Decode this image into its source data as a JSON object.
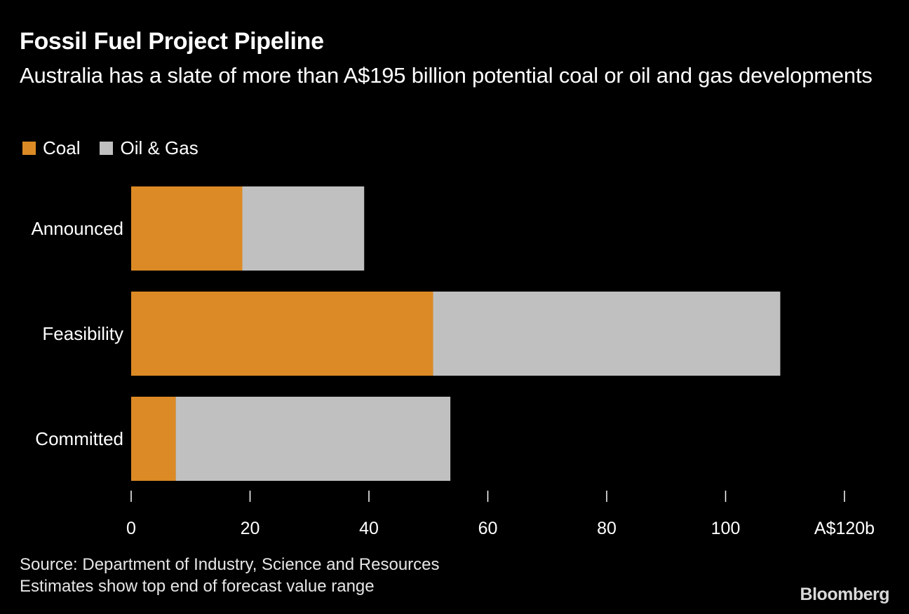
{
  "header": {
    "title": "Fossil Fuel Project Pipeline",
    "subtitle": "Australia has a slate of more than A$195 billion potential coal or oil and gas developments"
  },
  "legend": {
    "items": [
      {
        "label": "Coal",
        "color": "#dc8a25"
      },
      {
        "label": "Oil & Gas",
        "color": "#c0c0c0"
      }
    ]
  },
  "chart_data": {
    "type": "bar",
    "orientation": "horizontal",
    "stacked": true,
    "title": "Fossil Fuel Project Pipeline",
    "subtitle": "Australia has a slate of more than A$195 billion potential coal or oil and gas developments",
    "categories": [
      "Announced",
      "Feasibility",
      "Committed"
    ],
    "series": [
      {
        "name": "Coal",
        "color": "#dc8a25",
        "values": [
          18.7,
          50.8,
          7.5
        ]
      },
      {
        "name": "Oil & Gas",
        "color": "#c0c0c0",
        "values": [
          20.5,
          58.4,
          46.2
        ]
      }
    ],
    "xlim": [
      0,
      120
    ],
    "xticks": [
      0,
      20,
      40,
      60,
      80,
      100,
      120
    ],
    "xtick_labels": [
      "0",
      "20",
      "40",
      "60",
      "80",
      "100",
      "A$120b"
    ],
    "xlabel": "",
    "ylabel": "",
    "grid": false,
    "legend_position": "top-left"
  },
  "footer": {
    "source": "Source: Department of Industry, Science and Resources",
    "note": "Estimates show top end of forecast value range",
    "brand": "Bloomberg"
  }
}
